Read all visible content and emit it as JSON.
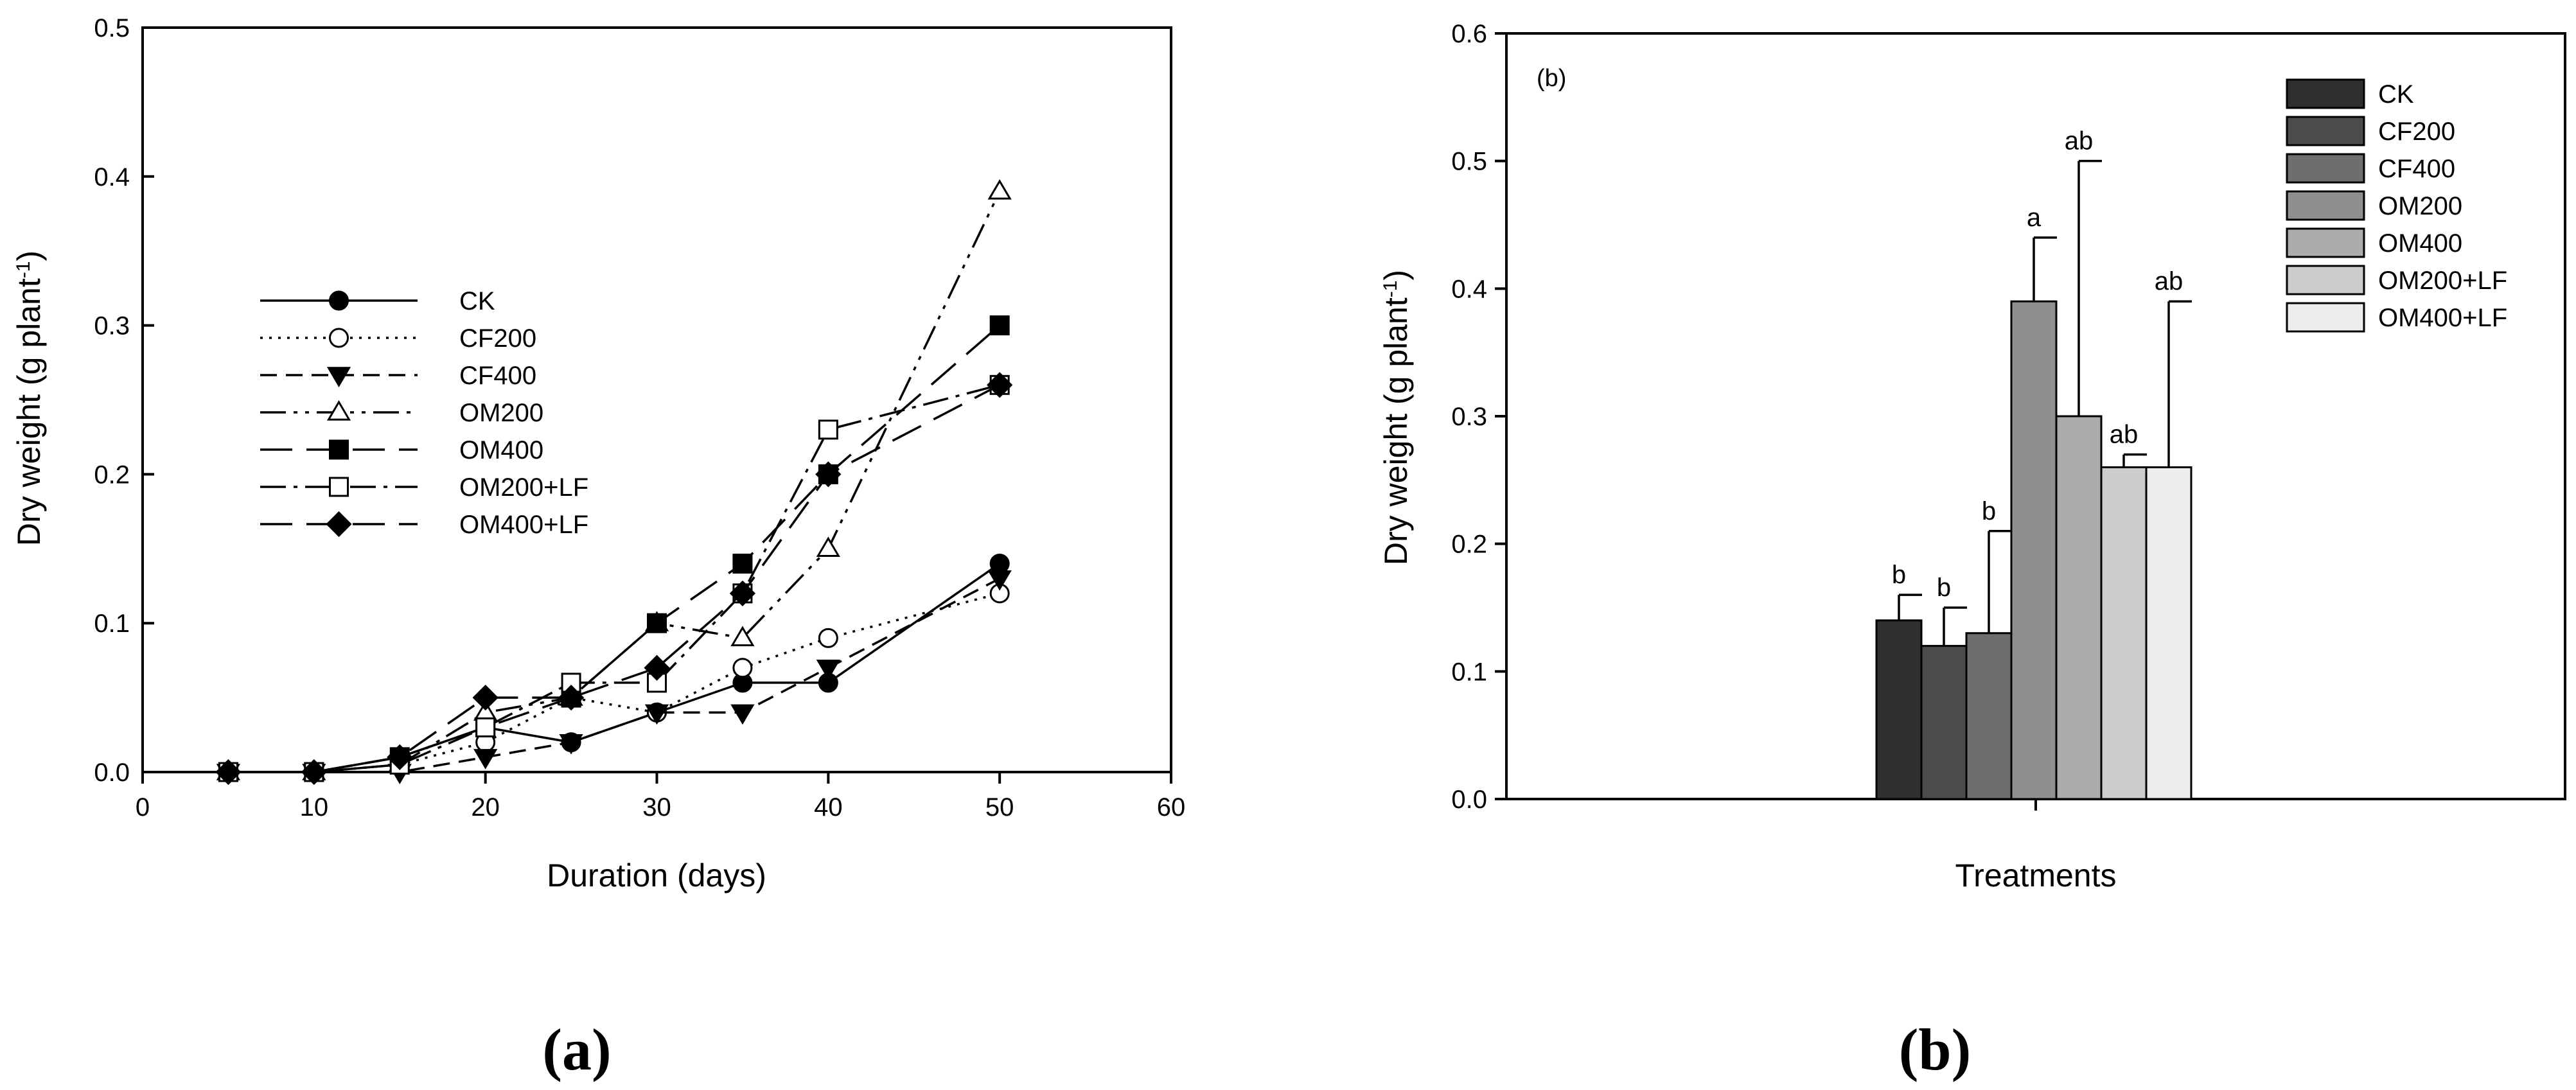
{
  "chart_data": [
    {
      "type": "line",
      "title": "",
      "xlabel": "Duration (days)",
      "ylabel_main": "Dry weight (g plant",
      "ylabel_sup": "-1",
      "ylabel_tail": ")",
      "xlim": [
        0,
        60
      ],
      "ylim": [
        0,
        0.5
      ],
      "xticks": [
        "0",
        "10",
        "20",
        "30",
        "40",
        "50",
        "60"
      ],
      "yticks": [
        "0.0",
        "0.1",
        "0.2",
        "0.3",
        "0.4",
        "0.5"
      ],
      "legend_position": "center-left",
      "grid": false,
      "series": [
        {
          "name": "CK",
          "marker": "filled-circle",
          "dash": "solid",
          "x": [
            5,
            10,
            15,
            20,
            25,
            30,
            35,
            40,
            50
          ],
          "y": [
            0,
            0,
            0.01,
            0.03,
            0.02,
            0.04,
            0.06,
            0.06,
            0.14
          ]
        },
        {
          "name": "CF200",
          "marker": "open-circle",
          "dash": "dotted",
          "x": [
            5,
            10,
            15,
            20,
            25,
            30,
            35,
            40,
            50
          ],
          "y": [
            0,
            0,
            0.005,
            0.02,
            0.05,
            0.04,
            0.07,
            0.09,
            0.12
          ]
        },
        {
          "name": "CF400",
          "marker": "filled-triangle-down",
          "dash": "dashed",
          "x": [
            5,
            10,
            15,
            20,
            25,
            30,
            35,
            40,
            50
          ],
          "y": [
            0,
            0,
            0,
            0.01,
            0.02,
            0.04,
            0.04,
            0.07,
            0.13
          ]
        },
        {
          "name": "OM200",
          "marker": "open-triangle-up",
          "dash": "dash-dot-dot",
          "x": [
            5,
            10,
            15,
            20,
            25,
            30,
            35,
            40,
            50
          ],
          "y": [
            0,
            0,
            0.005,
            0.04,
            0.05,
            0.1,
            0.09,
            0.15,
            0.39
          ]
        },
        {
          "name": "OM400",
          "marker": "filled-square",
          "dash": "long-dash",
          "x": [
            5,
            10,
            15,
            20,
            25,
            30,
            35,
            40,
            50
          ],
          "y": [
            0,
            0,
            0.01,
            0.03,
            0.05,
            0.1,
            0.14,
            0.2,
            0.3
          ]
        },
        {
          "name": "OM200+LF",
          "marker": "open-square",
          "dash": "dash-dot",
          "x": [
            5,
            10,
            15,
            20,
            25,
            30,
            35,
            40,
            50
          ],
          "y": [
            0,
            0,
            0.005,
            0.03,
            0.06,
            0.06,
            0.12,
            0.23,
            0.26
          ]
        },
        {
          "name": "OM400+LF",
          "marker": "filled-diamond",
          "dash": "long-dash",
          "x": [
            5,
            10,
            15,
            20,
            25,
            30,
            35,
            40,
            50
          ],
          "y": [
            0,
            0,
            0.01,
            0.05,
            0.05,
            0.07,
            0.12,
            0.2,
            0.26
          ]
        }
      ],
      "panel_label": "(a)"
    },
    {
      "type": "bar",
      "title": "",
      "inner_label": "(b)",
      "xlabel": "Treatments",
      "ylabel_main": "Dry weight (g plant",
      "ylabel_sup": "-1",
      "ylabel_tail": ")",
      "ylim": [
        0,
        0.6
      ],
      "yticks": [
        "0.0",
        "0.1",
        "0.2",
        "0.3",
        "0.4",
        "0.5",
        "0.6"
      ],
      "legend_position": "top-right",
      "grid": false,
      "categories": [
        "CK",
        "CF200",
        "CF400",
        "OM200",
        "OM400",
        "OM200+LF",
        "OM400+LF"
      ],
      "values": [
        0.14,
        0.12,
        0.13,
        0.39,
        0.3,
        0.26,
        0.26
      ],
      "error_upper": [
        0.16,
        0.15,
        0.21,
        0.44,
        0.5,
        0.27,
        0.39
      ],
      "significance": [
        "b",
        "b",
        "b",
        "a",
        "ab",
        "ab",
        "ab"
      ],
      "colors": [
        "#2f2f2f",
        "#4b4b4b",
        "#6e6e6e",
        "#8f8f8f",
        "#ababab",
        "#cdcdcd",
        "#ececec"
      ],
      "panel_label": "(b)"
    }
  ]
}
